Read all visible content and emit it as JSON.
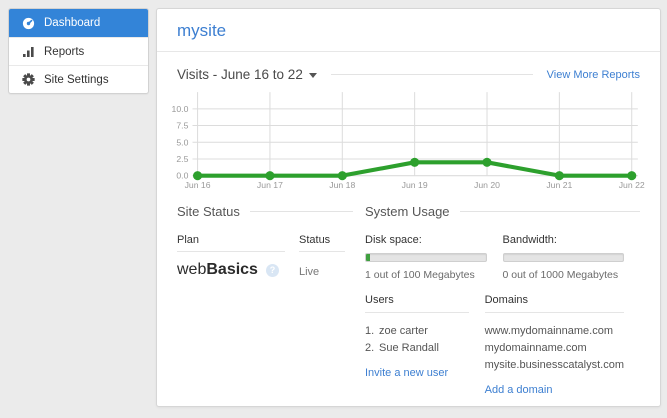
{
  "colors": {
    "accent_blue": "#3384d8",
    "link_blue": "#3d7fd1",
    "chart_green": "#2da02d",
    "usage_green": "#3fa03f"
  },
  "sidebar": {
    "items": [
      {
        "label": "Dashboard",
        "icon": "gauge-icon",
        "active": true
      },
      {
        "label": "Reports",
        "icon": "bar-chart-icon",
        "active": false
      },
      {
        "label": "Site Settings",
        "icon": "gear-icon",
        "active": false
      }
    ]
  },
  "header": {
    "site_name": "mysite"
  },
  "visits": {
    "title": "Visits -  June 16 to 22",
    "view_more_label": "View More Reports"
  },
  "chart_data": {
    "type": "line",
    "title": "Visits - June 16 to 22",
    "x": [
      "Jun 16",
      "Jun 17",
      "Jun 18",
      "Jun 19",
      "Jun 20",
      "Jun 21",
      "Jun 22"
    ],
    "series": [
      {
        "name": "Visits",
        "values": [
          0,
          0,
          0,
          2,
          2,
          0,
          0
        ]
      }
    ],
    "yticks": [
      0,
      2.5,
      5,
      7.5,
      10
    ],
    "ytick_labels": [
      "0.0",
      "2.5",
      "5.0",
      "7.5",
      "10.0"
    ],
    "ylim": [
      0,
      12.5
    ],
    "grid": true,
    "legend": "none",
    "line_color": "#2da02d"
  },
  "site_status": {
    "heading": "Site Status",
    "plan_label": "Plan",
    "plan_value_light": "web",
    "plan_value_bold": "Basics",
    "help_glyph": "?",
    "status_label": "Status",
    "status_value": "Live"
  },
  "system_usage": {
    "heading": "System Usage",
    "disk": {
      "label": "Disk space:",
      "percent": 1,
      "caption": "1 out of 100 Megabytes"
    },
    "bandwidth": {
      "label": "Bandwidth:",
      "percent": 0,
      "caption": "0 out of 1000 Megabytes"
    },
    "users": {
      "label": "Users",
      "items": [
        {
          "num": "1.",
          "name": "zoe carter"
        },
        {
          "num": "2.",
          "name": "Sue Randall"
        }
      ],
      "invite_label": "Invite a new user"
    },
    "domains": {
      "label": "Domains",
      "items": [
        "www.mydomainname.com",
        "mydomainname.com",
        "mysite.businesscatalyst.com"
      ],
      "add_label": "Add a domain"
    }
  }
}
